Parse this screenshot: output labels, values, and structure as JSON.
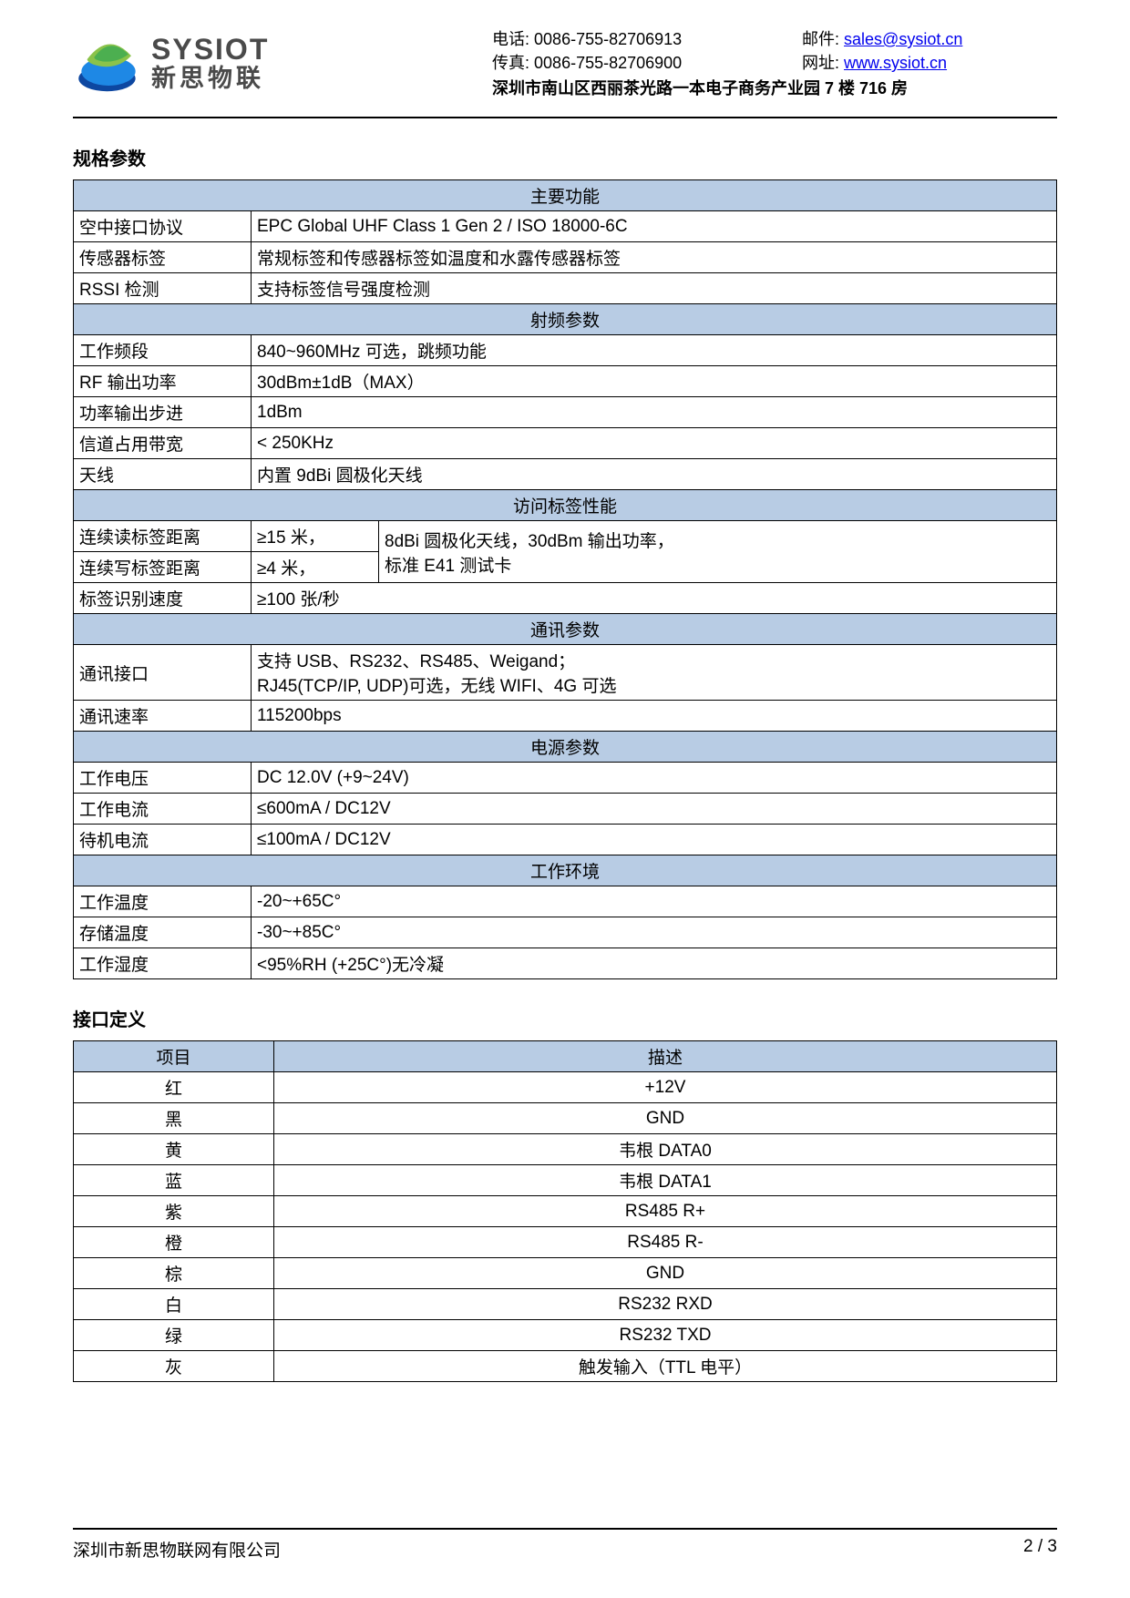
{
  "header": {
    "logo_en": "SYSIOT",
    "logo_cn": "新思物联",
    "phone_label": "电话:",
    "phone": "0086-755-82706913",
    "fax_label": "传真:",
    "fax": "0086-755-82706900",
    "email_label": "邮件:",
    "email": "sales@sysiot.cn",
    "url_label": "网址:",
    "url": "www.sysiot.cn",
    "address": "深圳市南山区西丽茶光路一本电子商务产业园 7 楼 716 房"
  },
  "section1_title": "规格参数",
  "spec": {
    "s1_header": "主要功能",
    "r1_label": "空中接口协议",
    "r1_value": "EPC Global UHF Class 1 Gen 2 / ISO 18000-6C",
    "r2_label": "传感器标签",
    "r2_value": "常规标签和传感器标签如温度和水露传感器标签",
    "r3_label": "RSSI 检测",
    "r3_value": "支持标签信号强度检测",
    "s2_header": "射频参数",
    "r4_label": "工作频段",
    "r4_value": "840~960MHz 可选，跳频功能",
    "r5_label": "RF 输出功率",
    "r5_value": "30dBm±1dB（MAX）",
    "r6_label": "功率输出步进",
    "r6_value": "1dBm",
    "r7_label": "信道占用带宽",
    "r7_value": "< 250KHz",
    "r8_label": "天线",
    "r8_value": "内置 9dBi 圆极化天线",
    "s3_header": "访问标签性能",
    "r9_label": "连续读标签距离",
    "r9_v1": "≥15 米，",
    "r9_v2": "8dBi 圆极化天线，30dBm 输出功率，",
    "r10_label": "连续写标签距离",
    "r10_v1": "≥4 米，",
    "r10_v2": "标准 E41 测试卡",
    "r11_label": "标签识别速度",
    "r11_value": "≥100 张/秒",
    "s4_header": "通讯参数",
    "r12_label": "通讯接口",
    "r12_line1": "支持 USB、RS232、RS485、Weigand；",
    "r12_line2": "RJ45(TCP/IP, UDP)可选，无线 WIFI、4G 可选",
    "r13_label": "通讯速率",
    "r13_value": "115200bps",
    "s5_header": "电源参数",
    "r14_label": "工作电压",
    "r14_value": "DC 12.0V (+9~24V)",
    "r15_label": "工作电流",
    "r15_value": "≤600mA / DC12V",
    "r16_label": "待机电流",
    "r16_value": "≤100mA / DC12V",
    "s6_header": "工作环境",
    "r17_label": "工作温度",
    "r17_value": "-20~+65C°",
    "r18_label": "存储温度",
    "r18_value": "-30~+85C°",
    "r19_label": "工作湿度",
    "r19_value": "<95%RH (+25C°)无冷凝"
  },
  "section2_title": "接口定义",
  "iface": {
    "h1": "项目",
    "h2": "描述",
    "rows": [
      {
        "c1": "红",
        "c2": "+12V"
      },
      {
        "c1": "黑",
        "c2": "GND"
      },
      {
        "c1": "黄",
        "c2": "韦根 DATA0"
      },
      {
        "c1": "蓝",
        "c2": "韦根 DATA1"
      },
      {
        "c1": "紫",
        "c2": "RS485 R+"
      },
      {
        "c1": "橙",
        "c2": "RS485 R-"
      },
      {
        "c1": "棕",
        "c2": "GND"
      },
      {
        "c1": "白",
        "c2": "RS232 RXD"
      },
      {
        "c1": "绿",
        "c2": "RS232 TXD"
      },
      {
        "c1": "灰",
        "c2": "触发输入（TTL 电平）"
      }
    ]
  },
  "footer": {
    "company": "深圳市新思物联网有限公司",
    "page": "2 / 3"
  },
  "colors": {
    "header_bg": "#b8cce4",
    "link": "#0000ee",
    "logo_green1": "#8bc34a",
    "logo_green2": "#4caf50",
    "logo_blue": "#1e88e5",
    "logo_blue_dark": "#0d47a1"
  }
}
